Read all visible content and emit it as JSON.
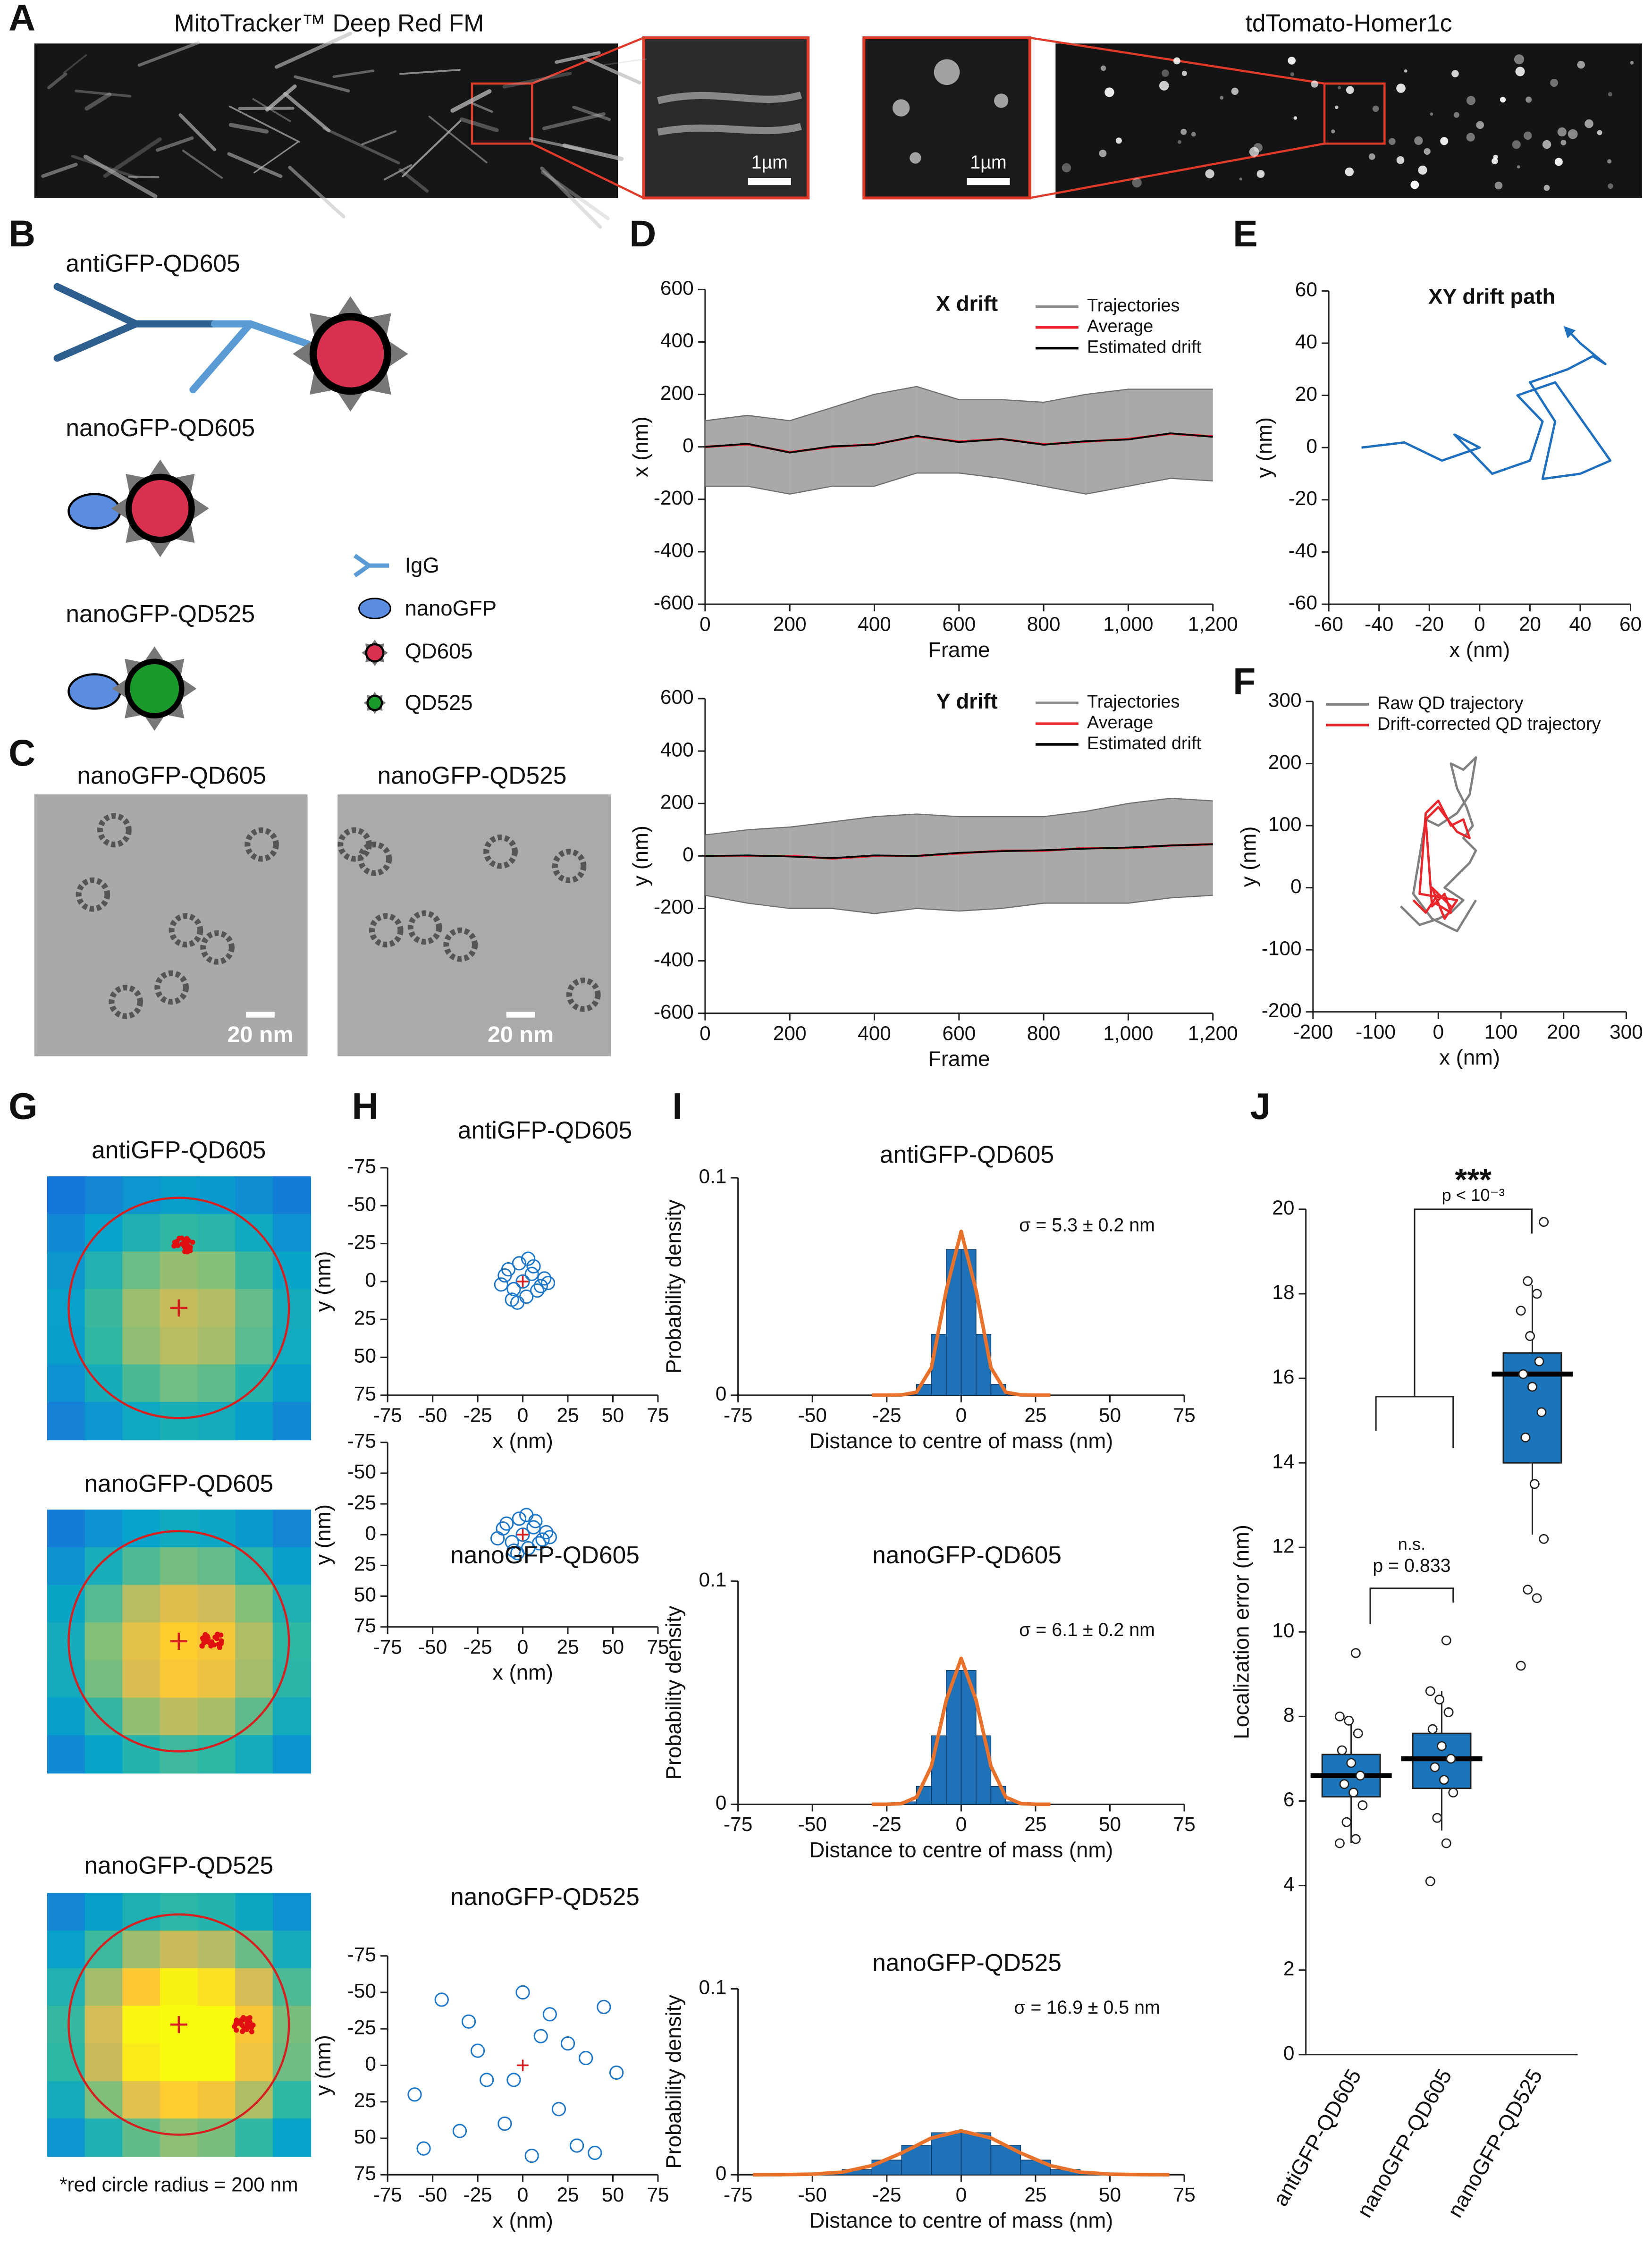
{
  "panel_letters": [
    "A",
    "B",
    "C",
    "D",
    "E",
    "F",
    "G",
    "H",
    "I",
    "J"
  ],
  "micrographs": {
    "left_label": "MitoTracker™ Deep Red FM",
    "right_label": "tdTomato-Homer1c",
    "scale_bars": [
      "1µm",
      "1µm"
    ]
  },
  "probes": {
    "labels": [
      "antiGFP-QD605",
      "nanoGFP-QD605",
      "nanoGFP-QD525"
    ],
    "legend": [
      "IgG",
      "nanoGFP",
      "QD605",
      "QD525"
    ]
  },
  "tem": {
    "labels": [
      "nanoGFP-QD605",
      "nanoGFP-QD525"
    ],
    "scale_bars": [
      "20 nm",
      "20 nm"
    ]
  },
  "heatmaps": {
    "titles": [
      "antiGFP-QD605",
      "nanoGFP-QD605",
      "nanoGFP-QD525"
    ],
    "note": "*red circle radius = 200 nm"
  },
  "chart_data": [
    {
      "type": "line",
      "title": "X drift",
      "x": [
        0,
        100,
        200,
        300,
        400,
        500,
        600,
        700,
        800,
        900,
        1000,
        1100,
        1200
      ],
      "series": [
        {
          "name": "Trajectories",
          "color": "#8c8c8c",
          "lower": [
            -150,
            -150,
            -180,
            -150,
            -150,
            -100,
            -100,
            -120,
            -150,
            -180,
            -150,
            -120,
            -130
          ],
          "upper": [
            100,
            120,
            100,
            150,
            200,
            230,
            180,
            180,
            170,
            200,
            220,
            220,
            220
          ]
        },
        {
          "name": "Average",
          "color": "#e8262b",
          "values": [
            0,
            10,
            -20,
            0,
            10,
            40,
            20,
            30,
            10,
            20,
            30,
            50,
            40
          ]
        },
        {
          "name": "Estimated drift",
          "color": "#000000",
          "values": [
            0,
            12,
            -22,
            2,
            8,
            42,
            18,
            30,
            8,
            22,
            28,
            52,
            38
          ]
        }
      ],
      "xlim": [
        0,
        1200
      ],
      "xticks": [
        0,
        200,
        400,
        600,
        800,
        {
          "value": 1000,
          "label": "1,000"
        },
        {
          "value": 1200,
          "label": "1,200"
        }
      ],
      "ylim": [
        -600,
        600
      ],
      "yticks": [
        -600,
        -400,
        -200,
        0,
        200,
        400,
        600
      ],
      "xlabel": "Frame",
      "ylabel": "x (nm)"
    },
    {
      "type": "line",
      "title": "Y drift",
      "x": [
        0,
        100,
        200,
        300,
        400,
        500,
        600,
        700,
        800,
        900,
        1000,
        1100,
        1200
      ],
      "series": [
        {
          "name": "Trajectories",
          "color": "#8c8c8c",
          "lower": [
            -150,
            -180,
            -200,
            -200,
            -220,
            -200,
            -210,
            -200,
            -180,
            -180,
            -180,
            -160,
            -150
          ],
          "upper": [
            80,
            100,
            110,
            130,
            150,
            160,
            150,
            150,
            150,
            170,
            200,
            220,
            210
          ]
        },
        {
          "name": "Average",
          "color": "#e8262b",
          "values": [
            0,
            0,
            0,
            -10,
            0,
            0,
            10,
            20,
            20,
            30,
            30,
            40,
            45
          ]
        },
        {
          "name": "Estimated drift",
          "color": "#000000",
          "values": [
            0,
            2,
            -2,
            -8,
            2,
            0,
            12,
            18,
            22,
            28,
            32,
            40,
            45
          ]
        }
      ],
      "xlim": [
        0,
        1200
      ],
      "xticks": [
        0,
        200,
        400,
        600,
        800,
        {
          "value": 1000,
          "label": "1,000"
        },
        {
          "value": 1200,
          "label": "1,200"
        }
      ],
      "ylim": [
        -600,
        600
      ],
      "yticks": [
        -600,
        -400,
        -200,
        0,
        200,
        400,
        600
      ],
      "xlabel": "Frame",
      "ylabel": "y (nm)"
    },
    {
      "type": "line",
      "title": "XY drift path",
      "series": [
        {
          "color": "#1f6fbf",
          "x": [
            -47,
            -30,
            -15,
            0,
            -10,
            5,
            20,
            25,
            15,
            30,
            52,
            40,
            25,
            30,
            20,
            35,
            45,
            50,
            40,
            35
          ],
          "values": [
            0,
            2,
            -5,
            0,
            5,
            -10,
            -5,
            10,
            20,
            25,
            -5,
            -10,
            -12,
            10,
            25,
            30,
            35,
            32,
            40,
            45
          ]
        }
      ],
      "xlim": [
        -60,
        60
      ],
      "xticks": [
        -60,
        -40,
        -20,
        0,
        20,
        40,
        60
      ],
      "ylim": [
        -60,
        60
      ],
      "yticks": [
        -60,
        -40,
        -20,
        0,
        20,
        40,
        60
      ],
      "xlabel": "x (nm)",
      "ylabel": "y (nm)"
    },
    {
      "type": "line",
      "series": [
        {
          "name": "Raw QD trajectory",
          "color": "#808080",
          "x": [
            -60,
            -30,
            0,
            20,
            40,
            10,
            30,
            50,
            60,
            40,
            55,
            45,
            30,
            20,
            40,
            60,
            50,
            30,
            0,
            -20,
            -40,
            -10,
            30,
            60
          ],
          "values": [
            -30,
            -60,
            -50,
            -40,
            -20,
            0,
            20,
            40,
            60,
            80,
            100,
            130,
            160,
            200,
            190,
            210,
            150,
            120,
            100,
            110,
            -10,
            -50,
            -70,
            -20
          ]
        },
        {
          "name": "Drift-corrected QD trajectory",
          "color": "#e8262b",
          "x": [
            -40,
            -20,
            0,
            20,
            -10,
            10,
            30,
            -30,
            -20,
            0,
            20,
            40,
            50,
            30,
            0,
            -20,
            -10,
            10,
            20,
            -5
          ],
          "values": [
            -20,
            -40,
            -10,
            -30,
            0,
            -50,
            -20,
            -10,
            120,
            140,
            100,
            110,
            80,
            90,
            130,
            110,
            -30,
            -10,
            -40,
            -25
          ]
        }
      ],
      "xlim": [
        -200,
        300
      ],
      "xticks": [
        -200,
        -100,
        0,
        100,
        200,
        300
      ],
      "ylim": [
        -200,
        300
      ],
      "yticks": [
        -200,
        -100,
        0,
        100,
        200,
        300
      ],
      "xlabel": "x (nm)",
      "ylabel": "y (nm)"
    },
    {
      "type": "scatter",
      "title": "antiGFP-QD605",
      "color": "#1f77c8",
      "x": [
        -12,
        -8,
        -5,
        -2,
        0,
        2,
        5,
        8,
        12,
        -10,
        10,
        -6,
        6,
        3,
        -3,
        14
      ],
      "values": [
        2,
        -8,
        5,
        -12,
        0,
        10,
        -5,
        6,
        -2,
        -4,
        3,
        12,
        -10,
        -15,
        14,
        1
      ],
      "xlim": [
        -75,
        75
      ],
      "xticks": [
        -75,
        -50,
        -25,
        0,
        25,
        50,
        75
      ],
      "ylim": [
        75,
        -75
      ],
      "yticks": [
        -75,
        -50,
        -25,
        0,
        25,
        50,
        75
      ],
      "xlabel": "x (nm)",
      "ylabel": "y (nm)"
    },
    {
      "type": "scatter",
      "title": "nanoGFP-QD605",
      "color": "#1f77c8",
      "x": [
        -14,
        -9,
        -6,
        -2,
        0,
        3,
        6,
        9,
        13,
        -11,
        11,
        -5,
        7,
        2,
        -3,
        15
      ],
      "values": [
        3,
        -9,
        6,
        -13,
        0,
        11,
        -6,
        7,
        -2,
        -5,
        4,
        13,
        -11,
        -16,
        15,
        2
      ],
      "xlim": [
        -75,
        75
      ],
      "xticks": [
        -75,
        -50,
        -25,
        0,
        25,
        50,
        75
      ],
      "ylim": [
        75,
        -75
      ],
      "yticks": [
        -75,
        -50,
        -25,
        0,
        25,
        50,
        75
      ],
      "xlabel": "x (nm)",
      "ylabel": "y (nm)"
    },
    {
      "type": "scatter",
      "title": "nanoGFP-QD525",
      "color": "#1f77c8",
      "x": [
        -60,
        -45,
        -30,
        -20,
        -10,
        0,
        10,
        20,
        30,
        45,
        52,
        -55,
        -25,
        5,
        25,
        40,
        -5,
        15,
        -35,
        35
      ],
      "values": [
        20,
        -45,
        -30,
        10,
        40,
        -50,
        -20,
        30,
        55,
        -40,
        5,
        57,
        -10,
        62,
        -15,
        60,
        10,
        -35,
        45,
        -5
      ],
      "xlim": [
        -75,
        75
      ],
      "xticks": [
        -75,
        -50,
        -25,
        0,
        25,
        50,
        75
      ],
      "ylim": [
        75,
        -75
      ],
      "yticks": [
        -75,
        -50,
        -25,
        0,
        25,
        50,
        75
      ],
      "xlabel": "x (nm)",
      "ylabel": "y (nm)"
    },
    {
      "type": "histogram",
      "title": "antiGFP-QD605",
      "color": "#1f72b8",
      "annotation": "σ = 5.3 ± 0.2 nm",
      "bins": [
        -20,
        -15,
        -10,
        -5,
        0,
        5,
        10,
        15,
        20
      ],
      "values": [
        0.0003,
        0.005,
        0.028,
        0.067,
        0.067,
        0.028,
        0.005,
        0.0003
      ],
      "fit": {
        "color": "#e8722b",
        "x": [
          -30,
          -25,
          -20,
          -15,
          -10,
          -5,
          0,
          5,
          10,
          15,
          20,
          25,
          30
        ],
        "values": [
          0,
          0,
          0.0001,
          0.0014,
          0.0127,
          0.0483,
          0.0753,
          0.0483,
          0.0127,
          0.0014,
          0.0001,
          0,
          0
        ]
      },
      "xlim": [
        -75,
        75
      ],
      "xticks": [
        -75,
        -50,
        -25,
        0,
        25,
        50,
        75
      ],
      "ylim": [
        0,
        0.1
      ],
      "yticks": [
        0,
        0.1
      ],
      "xlabel": "Distance to centre of mass (nm)",
      "ylabel": "Probability density"
    },
    {
      "type": "histogram",
      "title": "nanoGFP-QD605",
      "color": "#1f72b8",
      "annotation": "σ = 6.1 ± 0.2 nm",
      "bins": [
        -25,
        -20,
        -15,
        -10,
        -5,
        0,
        5,
        10,
        15,
        20,
        25
      ],
      "values": [
        0.0001,
        0.0011,
        0.008,
        0.0307,
        0.06,
        0.06,
        0.0307,
        0.008,
        0.0011,
        0.0001
      ],
      "fit": {
        "color": "#e8722b",
        "x": [
          -30,
          -25,
          -20,
          -15,
          -10,
          -5,
          0,
          5,
          10,
          15,
          20,
          25,
          30
        ],
        "values": [
          0,
          0,
          0.0003,
          0.0032,
          0.0171,
          0.0467,
          0.0654,
          0.0467,
          0.0171,
          0.0032,
          0.0003,
          0,
          0
        ]
      },
      "xlim": [
        -75,
        75
      ],
      "xticks": [
        -75,
        -50,
        -25,
        0,
        25,
        50,
        75
      ],
      "ylim": [
        0,
        0.1
      ],
      "yticks": [
        0,
        0.1
      ],
      "xlabel": "Distance to centre of mass (nm)",
      "ylabel": "Probability density"
    },
    {
      "type": "histogram",
      "title": "nanoGFP-QD525",
      "color": "#1f72b8",
      "annotation": "σ = 16.9 ± 0.5 nm",
      "bins": [
        -50,
        -40,
        -30,
        -20,
        -10,
        0,
        10,
        20,
        30,
        40,
        50
      ],
      "values": [
        0.0007,
        0.0028,
        0.0079,
        0.0159,
        0.0226,
        0.0226,
        0.0159,
        0.0079,
        0.0028,
        0.0007
      ],
      "fit": {
        "color": "#e8722b",
        "x": [
          -70,
          -60,
          -50,
          -40,
          -30,
          -20,
          -10,
          0,
          10,
          20,
          30,
          40,
          50,
          60,
          70
        ],
        "values": [
          0,
          4e-05,
          0.0003,
          0.0014,
          0.0049,
          0.0117,
          0.0198,
          0.0236,
          0.0198,
          0.0117,
          0.0049,
          0.0014,
          0.0003,
          4e-05,
          0
        ]
      },
      "xlim": [
        -75,
        75
      ],
      "xticks": [
        -75,
        -50,
        -25,
        0,
        25,
        50,
        75
      ],
      "ylim": [
        0,
        0.1
      ],
      "yticks": [
        0,
        0.1
      ],
      "xlabel": "Distance to centre of mass (nm)",
      "ylabel": "Probability density"
    },
    {
      "type": "box",
      "categories": [
        "antiGFP-QD605",
        "nanoGFP-QD605",
        "nanoGFP-QD525"
      ],
      "color": "#1a75bc",
      "q1": [
        6.1,
        6.3,
        14.0
      ],
      "median": [
        6.6,
        7.0,
        16.1
      ],
      "q3": [
        7.1,
        7.6,
        16.6
      ],
      "whisker_low": [
        5.0,
        5.3,
        12.3
      ],
      "whisker_high": [
        8.0,
        8.6,
        18.2
      ],
      "points": [
        [
          5.0,
          5.1,
          5.5,
          5.9,
          6.2,
          6.4,
          6.6,
          6.9,
          7.2,
          7.6,
          7.9,
          8.0,
          9.5
        ],
        [
          4.1,
          5.0,
          5.6,
          6.2,
          6.5,
          6.8,
          7.0,
          7.3,
          7.7,
          8.1,
          8.4,
          8.6,
          9.8
        ],
        [
          9.2,
          10.8,
          11.0,
          12.2,
          13.5,
          14.6,
          15.2,
          15.8,
          16.1,
          16.4,
          17.0,
          17.6,
          18.0,
          18.3,
          19.7
        ]
      ],
      "ylim": [
        0,
        20
      ],
      "yticks": [
        0,
        2,
        4,
        6,
        8,
        10,
        12,
        14,
        16,
        18,
        20
      ],
      "ylabel": "Localization error (nm)",
      "annotations": [
        "***",
        "p < 10⁻³",
        "n.s.",
        "p = 0.833"
      ]
    }
  ]
}
